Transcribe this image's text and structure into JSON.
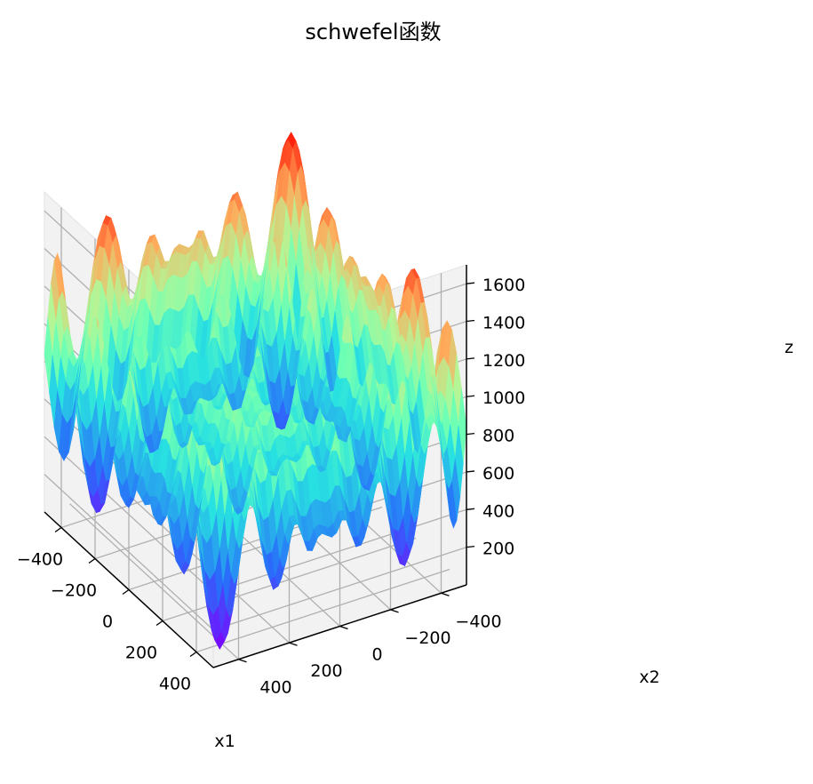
{
  "chart_data": {
    "type": "surface3d",
    "title": "schwefel函数",
    "xlabel": "x1",
    "ylabel": "x2",
    "zlabel": "z",
    "function": "schwefel",
    "xlim": [
      -500,
      500
    ],
    "ylim": [
      -500,
      500
    ],
    "zlim": [
      0,
      1700
    ],
    "x_ticks": [
      -400,
      -200,
      0,
      200,
      400
    ],
    "y_ticks": [
      -400,
      -200,
      0,
      200,
      400
    ],
    "z_ticks": [
      200,
      400,
      600,
      800,
      1000,
      1200,
      1400,
      1600
    ],
    "x_tick_labels": [
      "−400",
      "−200",
      "0",
      "200",
      "400"
    ],
    "y_tick_labels": [
      "−400",
      "−200",
      "0",
      "200",
      "400"
    ],
    "z_tick_labels": [
      "200",
      "400",
      "600",
      "800",
      "1000",
      "1200",
      "1400",
      "1600"
    ],
    "colormap": "rainbow",
    "grid": true,
    "pane_color": "#f2f2f2",
    "grid_color": "#b0b0b0"
  }
}
